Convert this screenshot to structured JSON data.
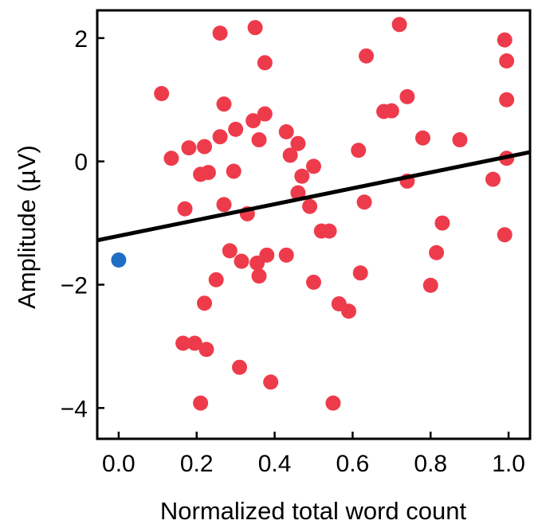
{
  "chart_data": {
    "type": "scatter",
    "xlabel": "Normalized total word count",
    "ylabel": "Amplitude (µV)",
    "xlim": [
      -0.055,
      1.055
    ],
    "ylim": [
      -4.5,
      2.45
    ],
    "xticks": [
      0.0,
      0.2,
      0.4,
      0.6,
      0.8,
      1.0
    ],
    "xtick_labels": [
      "0.0",
      "0.2",
      "0.4",
      "0.6",
      "0.8",
      "1.0"
    ],
    "yticks": [
      -4,
      -2,
      0,
      2
    ],
    "ytick_labels": [
      "−4",
      "−2",
      "0",
      "2"
    ],
    "grid": false,
    "colors": {
      "points": "#ee3b4b",
      "highlight": "#1f6fc4",
      "fit": "#000000"
    },
    "highlight_points": [
      {
        "x": 0.0,
        "y": -1.6
      }
    ],
    "fit_line": {
      "x": [
        -0.055,
        1.055
      ],
      "y": [
        -1.28,
        0.15
      ]
    },
    "points": [
      {
        "x": 0.11,
        "y": 1.1
      },
      {
        "x": 0.135,
        "y": 0.05
      },
      {
        "x": 0.17,
        "y": -0.77
      },
      {
        "x": 0.18,
        "y": 0.22
      },
      {
        "x": 0.165,
        "y": -2.95
      },
      {
        "x": 0.195,
        "y": -2.95
      },
      {
        "x": 0.21,
        "y": -3.92
      },
      {
        "x": 0.21,
        "y": -0.21
      },
      {
        "x": 0.22,
        "y": 0.24
      },
      {
        "x": 0.23,
        "y": -0.18
      },
      {
        "x": 0.22,
        "y": -2.3
      },
      {
        "x": 0.225,
        "y": -3.05
      },
      {
        "x": 0.26,
        "y": 2.08
      },
      {
        "x": 0.25,
        "y": -1.92
      },
      {
        "x": 0.26,
        "y": 0.4
      },
      {
        "x": 0.27,
        "y": -0.7
      },
      {
        "x": 0.27,
        "y": 0.93
      },
      {
        "x": 0.285,
        "y": -1.45
      },
      {
        "x": 0.3,
        "y": 0.52
      },
      {
        "x": 0.295,
        "y": -0.16
      },
      {
        "x": 0.31,
        "y": -3.34
      },
      {
        "x": 0.315,
        "y": -1.62
      },
      {
        "x": 0.33,
        "y": -0.85
      },
      {
        "x": 0.345,
        "y": 0.66
      },
      {
        "x": 0.35,
        "y": 2.17
      },
      {
        "x": 0.355,
        "y": -1.65
      },
      {
        "x": 0.36,
        "y": -1.86
      },
      {
        "x": 0.36,
        "y": 0.35
      },
      {
        "x": 0.375,
        "y": 0.77
      },
      {
        "x": 0.375,
        "y": 1.6
      },
      {
        "x": 0.38,
        "y": -1.52
      },
      {
        "x": 0.39,
        "y": -3.58
      },
      {
        "x": 0.43,
        "y": 0.48
      },
      {
        "x": 0.43,
        "y": -1.52
      },
      {
        "x": 0.44,
        "y": 0.1
      },
      {
        "x": 0.46,
        "y": 0.29
      },
      {
        "x": 0.46,
        "y": -0.51
      },
      {
        "x": 0.47,
        "y": -0.24
      },
      {
        "x": 0.49,
        "y": -0.73
      },
      {
        "x": 0.5,
        "y": -0.08
      },
      {
        "x": 0.5,
        "y": -1.96
      },
      {
        "x": 0.52,
        "y": -1.13
      },
      {
        "x": 0.54,
        "y": -1.13
      },
      {
        "x": 0.55,
        "y": -3.92
      },
      {
        "x": 0.565,
        "y": -2.31
      },
      {
        "x": 0.59,
        "y": -2.43
      },
      {
        "x": 0.615,
        "y": 0.18
      },
      {
        "x": 0.62,
        "y": -1.81
      },
      {
        "x": 0.63,
        "y": -0.66
      },
      {
        "x": 0.635,
        "y": 1.71
      },
      {
        "x": 0.68,
        "y": 0.81
      },
      {
        "x": 0.7,
        "y": 0.82
      },
      {
        "x": 0.72,
        "y": 2.22
      },
      {
        "x": 0.74,
        "y": 1.05
      },
      {
        "x": 0.74,
        "y": -0.32
      },
      {
        "x": 0.78,
        "y": 0.38
      },
      {
        "x": 0.8,
        "y": -2.01
      },
      {
        "x": 0.815,
        "y": -1.48
      },
      {
        "x": 0.83,
        "y": -1.0
      },
      {
        "x": 0.875,
        "y": 0.35
      },
      {
        "x": 0.96,
        "y": -0.29
      },
      {
        "x": 0.99,
        "y": 1.97
      },
      {
        "x": 0.995,
        "y": 1.63
      },
      {
        "x": 0.995,
        "y": 1.0
      },
      {
        "x": 0.995,
        "y": 0.05
      },
      {
        "x": 0.99,
        "y": -1.19
      }
    ]
  }
}
